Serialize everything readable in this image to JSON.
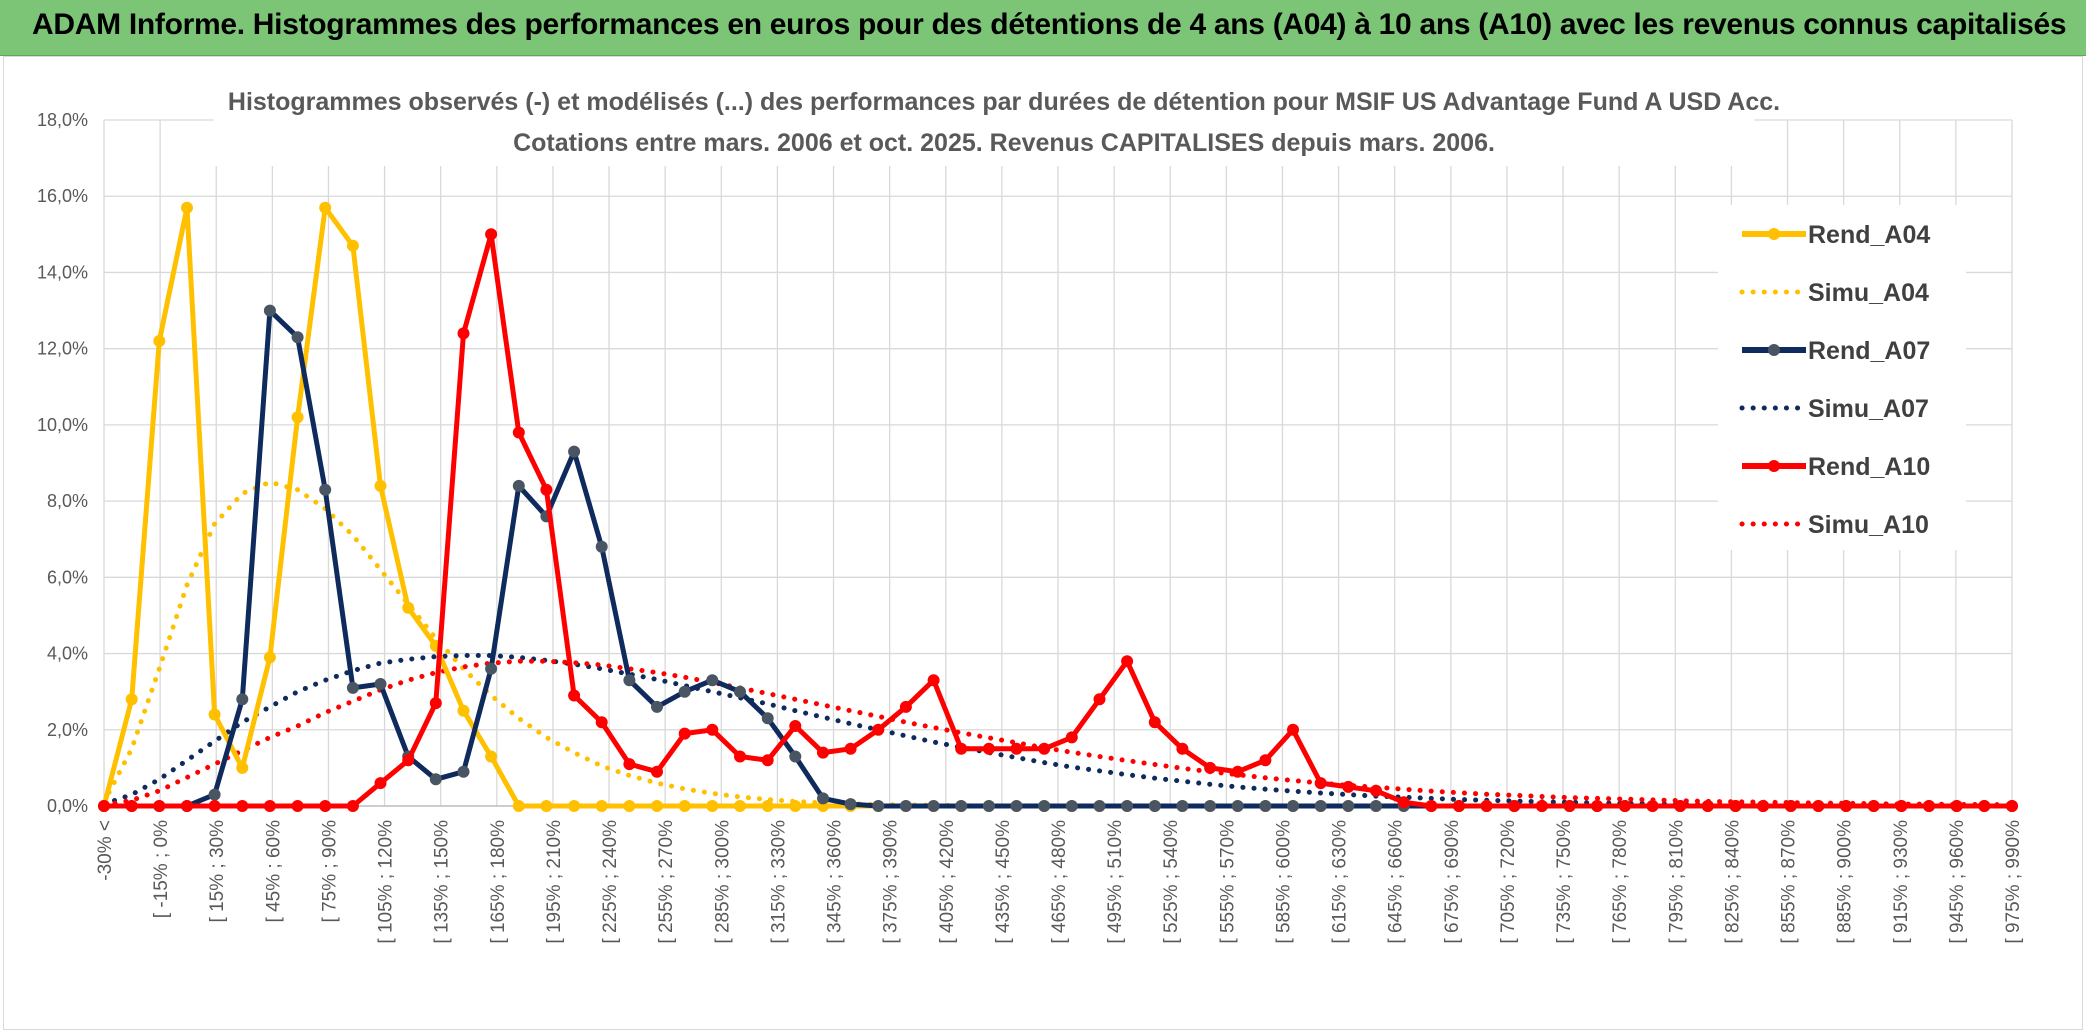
{
  "banner": {
    "title": "ADAM Informe. Histogrammes des performances en euros pour des détentions de 4 ans (A04) à 10 ans (A10) avec les revenus connus capitalisés"
  },
  "colors": {
    "banner_bg": "#7cc576",
    "A04": "#ffc000",
    "A07": "#0f2a5c",
    "A07_marker": "#4a5563",
    "A10": "#ff0000",
    "grid": "#d9d9d9"
  },
  "chart_data": {
    "type": "line",
    "title": "Histogrammes observés (-) et modélisés (...) des performances par durées de détention pour MSIF US Advantage Fund A USD Acc.",
    "subtitle": "Cotations entre mars. 2006 et oct. 2025. Revenus CAPITALISES depuis mars. 2006.",
    "xlabel": "",
    "ylabel": "",
    "ylim": [
      0,
      18
    ],
    "y_ticks": [
      "0,0%",
      "2,0%",
      "4,0%",
      "6,0%",
      "8,0%",
      "10,0%",
      "12,0%",
      "14,0%",
      "16,0%",
      "18,0%"
    ],
    "grid": true,
    "legend_position": "right",
    "x_tick_labels": [
      "-30% <",
      "[ -15% ; 0%",
      "[ 15% ; 30%",
      "[ 45% ; 60%",
      "[ 75% ; 90%",
      "[ 105% ; 120%",
      "[ 135% ; 150%",
      "[ 165% ; 180%",
      "[ 195% ; 210%",
      "[ 225% ; 240%",
      "[ 255% ; 270%",
      "[ 285% ; 300%",
      "[ 315% ; 330%",
      "[ 345% ; 360%",
      "[ 375% ; 390%",
      "[ 405% ; 420%",
      "[ 435% ; 450%",
      "[ 465% ; 480%",
      "[ 495% ; 510%",
      "[ 525% ; 540%",
      "[ 555% ; 570%",
      "[ 585% ; 600%",
      "[ 615% ; 630%",
      "[ 645% ; 660%",
      "[ 675% ; 690%",
      "[ 705% ; 720%",
      "[ 735% ; 750%",
      "[ 765% ; 780%",
      "[ 795% ; 810%",
      "[ 825% ; 840%",
      "[ 855% ; 870%",
      "[ 885% ; 900%",
      "[ 915% ; 930%",
      "[ 945% ; 960%",
      "[ 975% ; 990%"
    ],
    "series": [
      {
        "name": "Rend_A04",
        "style": "solid",
        "color": "#ffc000",
        "values": [
          0,
          2.8,
          12.2,
          15.7,
          2.4,
          1.0,
          3.9,
          10.2,
          15.7,
          14.7,
          8.4,
          5.2,
          4.2,
          2.5,
          1.3,
          0,
          0,
          0,
          0,
          0,
          0,
          0,
          0,
          0,
          0,
          0,
          0,
          0,
          0,
          0,
          0,
          0,
          0,
          0,
          0,
          0,
          0,
          0,
          0,
          0,
          0,
          0,
          0,
          0,
          0,
          0,
          0,
          0,
          0,
          0,
          0,
          0,
          0,
          0,
          0,
          0,
          0,
          0,
          0,
          0,
          0,
          0,
          0,
          0,
          0,
          0,
          0,
          0,
          0,
          0
        ]
      },
      {
        "name": "Simu_A04",
        "style": "dotted",
        "color": "#ffc000",
        "values": [
          0.1,
          1.5,
          3.6,
          5.8,
          7.4,
          8.2,
          8.5,
          8.3,
          7.8,
          7.1,
          6.2,
          5.3,
          4.4,
          3.6,
          2.9,
          2.3,
          1.8,
          1.4,
          1.05,
          0.8,
          0.6,
          0.45,
          0.33,
          0.24,
          0.17,
          0.12,
          0.08,
          0.06,
          0.04,
          0.03,
          0.02,
          0.01,
          0,
          0,
          0,
          0,
          0,
          0,
          0,
          0,
          0,
          0,
          0,
          0,
          0,
          0,
          0,
          0,
          0,
          0,
          0,
          0,
          0,
          0,
          0,
          0,
          0,
          0,
          0,
          0,
          0,
          0,
          0,
          0,
          0,
          0,
          0,
          0,
          0,
          0
        ]
      },
      {
        "name": "Rend_A07",
        "style": "solid",
        "color": "#0f2a5c",
        "values": [
          0,
          0,
          0,
          0,
          0.3,
          2.8,
          13.0,
          12.3,
          8.3,
          3.1,
          3.2,
          1.3,
          0.7,
          0.9,
          3.6,
          8.4,
          7.6,
          9.3,
          6.8,
          3.3,
          2.6,
          3.0,
          3.3,
          3.0,
          2.3,
          1.3,
          0.2,
          0.05,
          0,
          0,
          0,
          0,
          0,
          0,
          0,
          0,
          0,
          0,
          0,
          0,
          0,
          0,
          0,
          0,
          0,
          0,
          0,
          0,
          0,
          0,
          0,
          0,
          0,
          0,
          0,
          0,
          0,
          0,
          0,
          0,
          0,
          0,
          0,
          0,
          0,
          0,
          0,
          0,
          0,
          0
        ]
      },
      {
        "name": "Simu_A07",
        "style": "dotted",
        "color": "#0f2a5c",
        "values": [
          0.05,
          0.3,
          0.7,
          1.2,
          1.7,
          2.2,
          2.6,
          3.0,
          3.3,
          3.55,
          3.75,
          3.85,
          3.92,
          3.95,
          3.95,
          3.9,
          3.82,
          3.72,
          3.6,
          3.46,
          3.32,
          3.16,
          3.0,
          2.84,
          2.68,
          2.5,
          2.33,
          2.16,
          2.0,
          1.84,
          1.68,
          1.54,
          1.4,
          1.27,
          1.14,
          1.02,
          0.92,
          0.82,
          0.73,
          0.65,
          0.57,
          0.5,
          0.44,
          0.39,
          0.34,
          0.3,
          0.26,
          0.23,
          0.2,
          0.17,
          0.15,
          0.13,
          0.11,
          0.1,
          0.08,
          0.07,
          0.06,
          0.05,
          0.04,
          0.04,
          0.03,
          0.03,
          0.02,
          0.02,
          0.02,
          0.01,
          0.01,
          0.01,
          0.01,
          0.01
        ]
      },
      {
        "name": "Rend_A10",
        "style": "solid",
        "color": "#ff0000",
        "values": [
          0,
          0,
          0,
          0,
          0,
          0,
          0,
          0,
          0,
          0,
          0.6,
          1.2,
          2.7,
          12.4,
          15.0,
          9.8,
          8.3,
          2.9,
          2.2,
          1.1,
          0.9,
          1.9,
          2.0,
          1.3,
          1.2,
          2.1,
          1.4,
          1.5,
          2.0,
          2.6,
          3.3,
          1.5,
          1.5,
          1.5,
          1.5,
          1.8,
          2.8,
          3.8,
          2.2,
          1.5,
          1.0,
          0.9,
          1.2,
          2.0,
          0.6,
          0.5,
          0.4,
          0.1,
          0,
          0,
          0,
          0,
          0,
          0,
          0,
          0,
          0,
          0,
          0,
          0,
          0,
          0,
          0,
          0,
          0,
          0,
          0,
          0,
          0,
          0
        ]
      },
      {
        "name": "Simu_A10",
        "style": "dotted",
        "color": "#ff0000",
        "values": [
          0.02,
          0.15,
          0.4,
          0.75,
          1.1,
          1.45,
          1.8,
          2.1,
          2.45,
          2.75,
          3.05,
          3.3,
          3.5,
          3.65,
          3.75,
          3.8,
          3.8,
          3.76,
          3.7,
          3.6,
          3.5,
          3.38,
          3.24,
          3.1,
          2.95,
          2.8,
          2.65,
          2.5,
          2.35,
          2.2,
          2.06,
          1.92,
          1.79,
          1.66,
          1.53,
          1.41,
          1.3,
          1.19,
          1.09,
          0.99,
          0.9,
          0.82,
          0.74,
          0.67,
          0.6,
          0.54,
          0.49,
          0.44,
          0.39,
          0.35,
          0.31,
          0.28,
          0.25,
          0.22,
          0.2,
          0.18,
          0.16,
          0.14,
          0.12,
          0.11,
          0.1,
          0.09,
          0.08,
          0.07,
          0.06,
          0.05,
          0.05,
          0.04,
          0.04,
          0.03
        ]
      }
    ]
  }
}
